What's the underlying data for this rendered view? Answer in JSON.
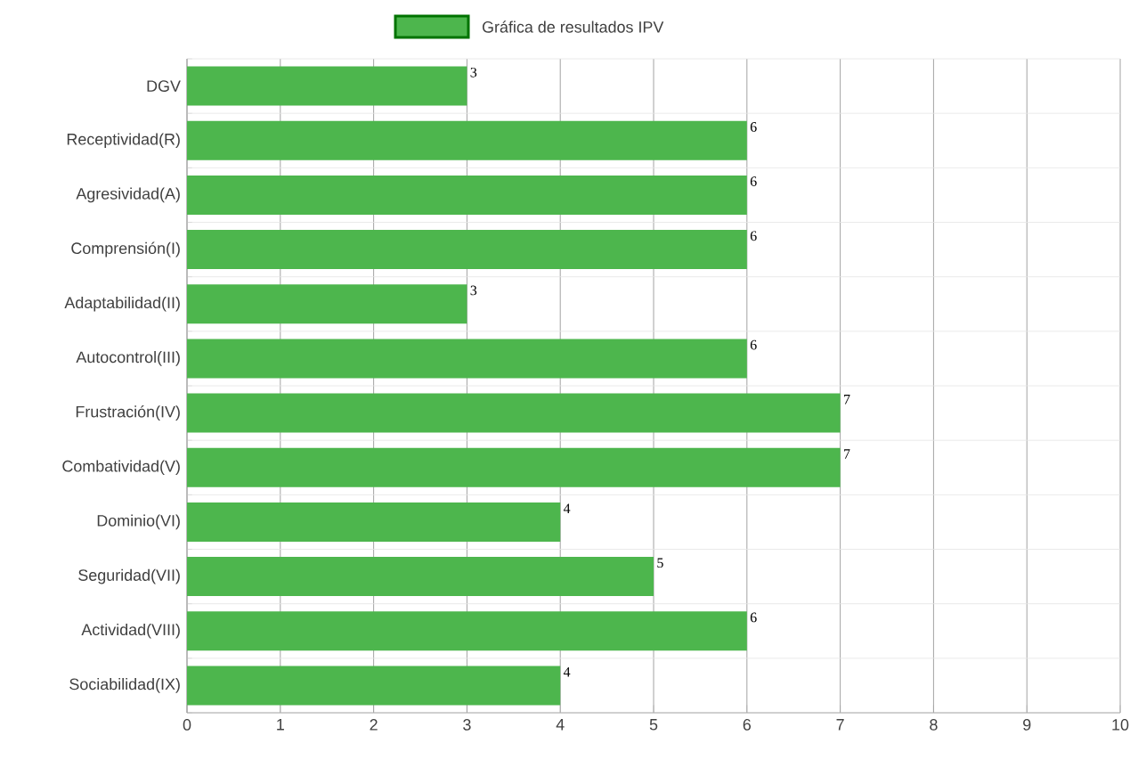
{
  "chart_data": {
    "type": "bar",
    "orientation": "horizontal",
    "categories": [
      "DGV",
      "Receptividad(R)",
      "Agresividad(A)",
      "Comprensión(I)",
      "Adaptabilidad(II)",
      "Autocontrol(III)",
      "Frustración(IV)",
      "Combatividad(V)",
      "Dominio(VI)",
      "Seguridad(VII)",
      "Actividad(VIII)",
      "Sociabilidad(IX)"
    ],
    "series": [
      {
        "name": "Gráfica de resultados IPV",
        "color": "#4db64d",
        "values": [
          3,
          6,
          6,
          6,
          3,
          6,
          7,
          7,
          4,
          5,
          6,
          4
        ]
      }
    ],
    "xlim": [
      0,
      10
    ],
    "xticks": [
      0,
      1,
      2,
      3,
      4,
      5,
      6,
      7,
      8,
      9,
      10
    ],
    "grid": true,
    "legend": "top",
    "data_labels": true
  }
}
